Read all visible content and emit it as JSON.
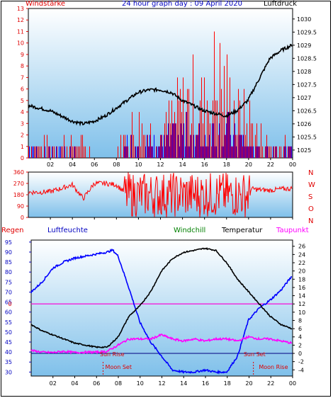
{
  "header": {
    "left_label": "Windstärke",
    "title": "24 hour graph day : 09 April 2020",
    "right_label": "Luftdruck"
  },
  "legend": {
    "regen": "Regen",
    "luftfeuchte": "Luftfeuchte",
    "windchill": "Windchill",
    "temperatur": "Temperatur",
    "taupunkt": "Taupunkt"
  },
  "colors": {
    "wind": "#ff0000",
    "wind_avg": "#0000ff",
    "pressure": "#000000",
    "humidity": "#0000ff",
    "temperature": "#000000",
    "dewpoint": "#ff00ff",
    "windchill": "#008000",
    "rain": "#ff0000",
    "plot_gradient_top": "#ffffff",
    "plot_gradient_bottom": "#7fc0ea"
  },
  "chart_data": [
    {
      "type": "bar",
      "name": "wind_pressure",
      "x_ticks": [
        "02",
        "04",
        "06",
        "08",
        "10",
        "12",
        "14",
        "16",
        "18",
        "20",
        "22",
        "00"
      ],
      "left_axis": {
        "ticks": [
          0,
          1,
          2,
          3,
          4,
          5,
          6,
          7,
          8,
          9,
          10,
          11,
          12,
          13
        ],
        "range": [
          0,
          13
        ]
      },
      "right_axis": {
        "ticks": [
          1025,
          1025.5,
          1026,
          1026.5,
          1027,
          1027.5,
          1028,
          1028.5,
          1029,
          1029.5,
          1030
        ],
        "range": [
          1024.7,
          1030.4
        ]
      },
      "series": [
        {
          "name": "Windstärke",
          "axis": "left",
          "hours": [
            0,
            1,
            2,
            3,
            4,
            5,
            6,
            7,
            8,
            9,
            10,
            11,
            12,
            13,
            14,
            15,
            16,
            17,
            18,
            19,
            20,
            21,
            22,
            23,
            24
          ],
          "gust_max": [
            2,
            2,
            2,
            2,
            2,
            2,
            0,
            0,
            1,
            4,
            5,
            4,
            3,
            6,
            8,
            9,
            8,
            13,
            10,
            7,
            6,
            3,
            2,
            2,
            1
          ],
          "avg": [
            1,
            1,
            1,
            1,
            1,
            0,
            0,
            0,
            0,
            2,
            2,
            2,
            2,
            3,
            4,
            3,
            3,
            5,
            4,
            3,
            2,
            1,
            1,
            1,
            1
          ]
        },
        {
          "name": "Luftdruck",
          "axis": "right",
          "hours": [
            0,
            1,
            2,
            3,
            4,
            5,
            6,
            7,
            8,
            9,
            10,
            11,
            12,
            13,
            14,
            15,
            16,
            17,
            18,
            19,
            20,
            21,
            22,
            23,
            24
          ],
          "values": [
            1026.7,
            1026.6,
            1026.5,
            1026.3,
            1026.1,
            1026.0,
            1026.1,
            1026.3,
            1026.6,
            1026.9,
            1027.2,
            1027.3,
            1027.3,
            1027.2,
            1026.9,
            1026.7,
            1026.5,
            1026.4,
            1026.3,
            1026.5,
            1026.9,
            1027.7,
            1028.5,
            1028.8,
            1029.0
          ]
        }
      ]
    },
    {
      "type": "line",
      "name": "wind_direction",
      "x_ticks": [
        "02",
        "04",
        "06",
        "08",
        "10",
        "12",
        "14",
        "16",
        "18",
        "20",
        "22",
        "00"
      ],
      "left_axis": {
        "ticks": [
          0,
          90,
          180,
          270,
          360
        ],
        "range": [
          0,
          360
        ]
      },
      "right_labels": [
        "N",
        "W",
        "S",
        "O",
        "N"
      ],
      "series": [
        {
          "name": "direction",
          "hours": [
            0,
            1,
            2,
            3,
            4,
            5,
            6,
            7,
            8,
            9,
            10,
            11,
            12,
            13,
            14,
            15,
            16,
            17,
            18,
            19,
            20,
            21,
            22,
            23,
            24
          ],
          "values": [
            200,
            200,
            205,
            230,
            260,
            150,
            270,
            270,
            260,
            180,
            250,
            220,
            200,
            240,
            210,
            190,
            230,
            200,
            220,
            250,
            230,
            220,
            215,
            225,
            230
          ]
        }
      ]
    },
    {
      "type": "line",
      "name": "temperature_humidity",
      "x_ticks": [
        "02",
        "04",
        "06",
        "08",
        "10",
        "12",
        "14",
        "16",
        "18",
        "20",
        "22",
        "00"
      ],
      "left_axis": {
        "ticks": [
          30,
          35,
          40,
          45,
          50,
          55,
          60,
          65,
          70,
          75,
          80,
          85,
          90,
          95
        ],
        "range": [
          28,
          96
        ]
      },
      "right_axis": {
        "ticks": [
          -4,
          -2,
          0,
          2,
          4,
          6,
          8,
          10,
          12,
          14,
          16,
          18,
          20,
          22,
          24,
          26
        ],
        "range": [
          -5.5,
          27.5
        ]
      },
      "rain_axis": {
        "ticks": [
          0
        ],
        "value": 0
      },
      "annotations": {
        "sun_rise": "Sun Rise",
        "sun_set": "Sun Set",
        "moon_set": "Moon Set",
        "moon_rise": "Moon Rise"
      },
      "series": [
        {
          "name": "Luftfeuchte",
          "axis": "left",
          "hours": [
            0,
            1,
            2,
            3,
            4,
            5,
            6,
            7,
            7.5,
            8,
            9,
            10,
            11,
            12,
            13,
            14,
            15,
            16,
            17,
            18,
            19,
            20,
            21,
            22,
            23,
            24
          ],
          "values": [
            70,
            75,
            82,
            85,
            87,
            88,
            89,
            90,
            91,
            88,
            72,
            55,
            45,
            38,
            31,
            30,
            30,
            31,
            30,
            30,
            38,
            56,
            62,
            66,
            71,
            78
          ]
        },
        {
          "name": "Temperatur",
          "axis": "right",
          "hours": [
            0,
            1,
            2,
            3,
            4,
            5,
            6,
            7,
            8,
            9,
            10,
            11,
            12,
            13,
            14,
            15,
            16,
            17,
            18,
            19,
            20,
            21,
            22,
            23,
            24
          ],
          "values": [
            7,
            5.5,
            4.5,
            3.5,
            2.5,
            2,
            1.5,
            1.5,
            4,
            9,
            11.5,
            15,
            20,
            23,
            24.5,
            25,
            25.5,
            25,
            22,
            18,
            15,
            12,
            9,
            7,
            6
          ]
        },
        {
          "name": "Taupunkt",
          "axis": "right",
          "hours": [
            0,
            1,
            2,
            3,
            4,
            5,
            6,
            7,
            8,
            9,
            10,
            11,
            12,
            13,
            14,
            15,
            16,
            17,
            18,
            19,
            20,
            21,
            22,
            23,
            24
          ],
          "values": [
            0.7,
            0.3,
            0.2,
            0.5,
            0.2,
            0.3,
            0.3,
            0.5,
            2,
            3.5,
            3.5,
            3.5,
            4.5,
            3.5,
            3,
            3.5,
            3,
            3.5,
            3.5,
            3,
            4,
            3.5,
            3.5,
            3,
            2.5
          ]
        }
      ]
    }
  ]
}
